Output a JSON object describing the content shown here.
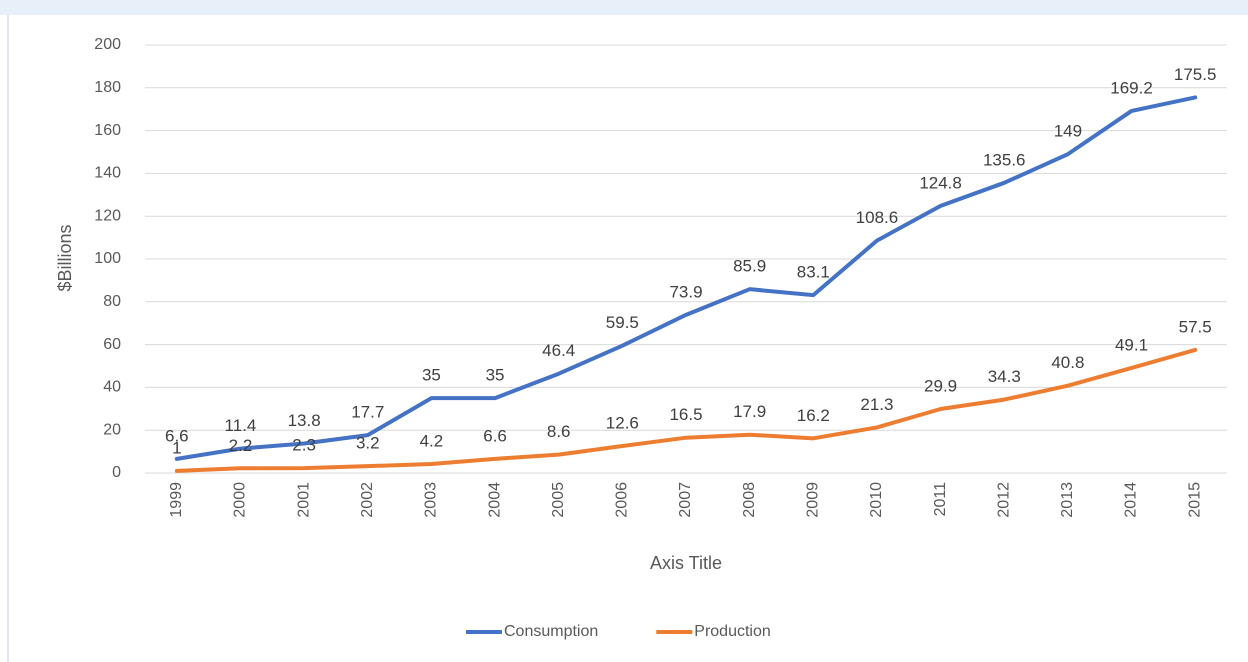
{
  "chart_data": {
    "type": "line",
    "categories": [
      "1999",
      "2000",
      "2001",
      "2002",
      "2003",
      "2004",
      "2005",
      "2006",
      "2007",
      "2008",
      "2009",
      "2010",
      "2011",
      "2012",
      "2013",
      "2014",
      "2015"
    ],
    "series": [
      {
        "name": "Consumption",
        "color": "#4472c4",
        "values": [
          6.6,
          11.4,
          13.8,
          17.7,
          35,
          35,
          46.4,
          59.5,
          73.9,
          85.9,
          83.1,
          108.6,
          124.8,
          135.6,
          149,
          169.2,
          175.5
        ]
      },
      {
        "name": "Production",
        "color": "#ed7d31",
        "values": [
          1,
          2.2,
          2.3,
          3.2,
          4.2,
          6.6,
          8.6,
          12.6,
          16.5,
          17.9,
          16.2,
          21.3,
          29.9,
          34.3,
          40.8,
          49.1,
          57.5
        ]
      }
    ],
    "xlabel": "Axis Title",
    "ylabel": "$Billions",
    "ylim": [
      0,
      200
    ],
    "yticks": [
      0,
      20,
      40,
      60,
      80,
      100,
      120,
      140,
      160,
      180,
      200
    ],
    "grid": true,
    "legend": "bottom"
  }
}
